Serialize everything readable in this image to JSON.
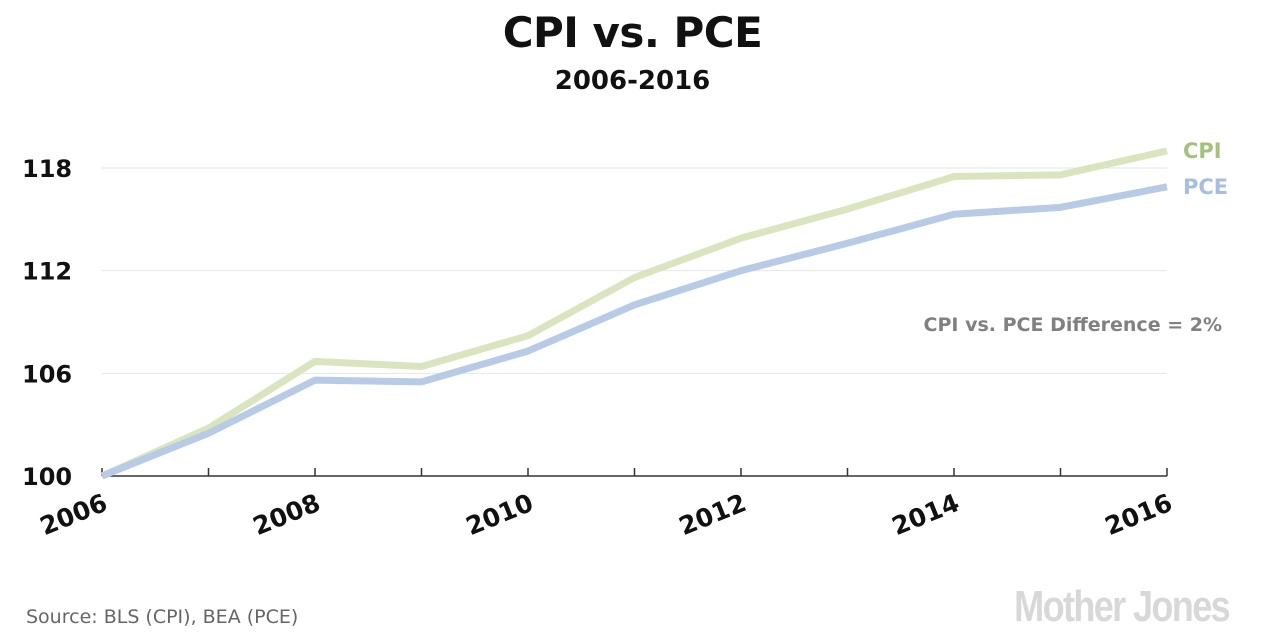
{
  "chart_data": {
    "type": "line",
    "title": "CPI vs. PCE",
    "subtitle": "2006-2016",
    "x": [
      2006,
      2007,
      2008,
      2009,
      2010,
      2011,
      2012,
      2013,
      2014,
      2015,
      2016
    ],
    "x_tick_labels": [
      "2006",
      "2008",
      "2010",
      "2012",
      "2014",
      "2016"
    ],
    "y_tick_labels": [
      "100",
      "106",
      "112",
      "118"
    ],
    "ylim": [
      100,
      118
    ],
    "grid": true,
    "series": [
      {
        "name": "CPI",
        "color": "#dae5c0",
        "label_color": "#a4c27a",
        "values": [
          100.0,
          102.8,
          106.7,
          106.4,
          108.2,
          111.6,
          113.9,
          115.6,
          117.5,
          117.6,
          119.0
        ]
      },
      {
        "name": "PCE",
        "color": "#b8cbe6",
        "label_color": "#a6bfe0",
        "values": [
          100.0,
          102.5,
          105.6,
          105.5,
          107.3,
          110.0,
          112.0,
          113.6,
          115.3,
          115.7,
          116.9
        ]
      }
    ],
    "annotation": "CPI vs. PCE Difference = 2%"
  },
  "source": "Source: BLS (CPI), BEA (PCE)",
  "logo_text": "Mother Jones"
}
